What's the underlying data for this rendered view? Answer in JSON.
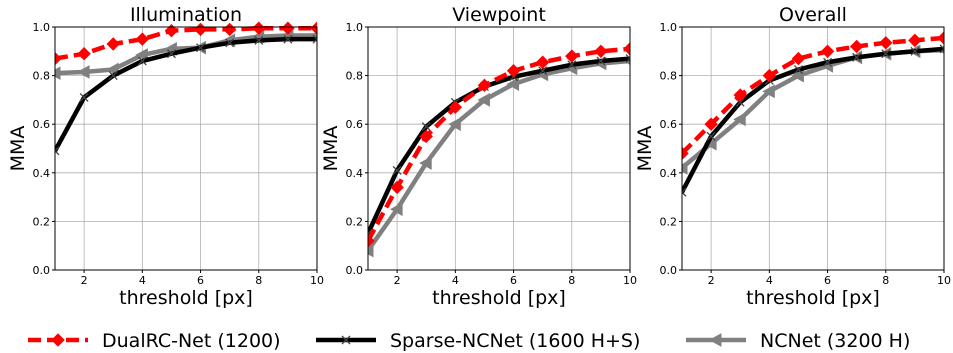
{
  "chart_data": [
    {
      "type": "line",
      "title": "Illumination",
      "xlabel": "threshold [px]",
      "ylabel": "MMA",
      "xlim": [
        1,
        10
      ],
      "ylim": [
        0.0,
        1.0
      ],
      "grid": true,
      "x": [
        1,
        2,
        3,
        4,
        5,
        6,
        7,
        8,
        9,
        10
      ],
      "series": [
        {
          "name": "DualRC-Net (1200)",
          "values": [
            0.87,
            0.89,
            0.93,
            0.95,
            0.985,
            0.99,
            0.99,
            0.995,
            0.995,
            0.995
          ]
        },
        {
          "name": "Sparse-NCNet (1600 H+S)",
          "values": [
            0.49,
            0.71,
            0.8,
            0.86,
            0.89,
            0.915,
            0.935,
            0.945,
            0.95,
            0.95
          ]
        },
        {
          "name": "NCNet (3200 H)",
          "values": [
            0.81,
            0.815,
            0.825,
            0.885,
            0.91,
            0.915,
            0.945,
            0.96,
            0.965,
            0.965
          ]
        }
      ]
    },
    {
      "type": "line",
      "title": "Viewpoint",
      "xlabel": "threshold [px]",
      "ylabel": "MMA",
      "xlim": [
        1,
        10
      ],
      "ylim": [
        0.0,
        1.0
      ],
      "grid": true,
      "x": [
        1,
        2,
        3,
        4,
        5,
        6,
        7,
        8,
        9,
        10
      ],
      "series": [
        {
          "name": "DualRC-Net (1200)",
          "values": [
            0.12,
            0.34,
            0.55,
            0.67,
            0.76,
            0.82,
            0.855,
            0.88,
            0.9,
            0.91
          ]
        },
        {
          "name": "Sparse-NCNet (1600 H+S)",
          "values": [
            0.15,
            0.41,
            0.59,
            0.69,
            0.755,
            0.795,
            0.82,
            0.845,
            0.86,
            0.87
          ]
        },
        {
          "name": "NCNet (3200 H)",
          "values": [
            0.08,
            0.25,
            0.44,
            0.6,
            0.7,
            0.765,
            0.805,
            0.83,
            0.85,
            0.86
          ]
        }
      ]
    },
    {
      "type": "line",
      "title": "Overall",
      "xlabel": "threshold [px]",
      "ylabel": "MMA",
      "xlim": [
        1,
        10
      ],
      "ylim": [
        0.0,
        1.0
      ],
      "grid": true,
      "x": [
        1,
        2,
        3,
        4,
        5,
        6,
        7,
        8,
        9,
        10
      ],
      "series": [
        {
          "name": "DualRC-Net (1200)",
          "values": [
            0.48,
            0.6,
            0.72,
            0.8,
            0.87,
            0.9,
            0.92,
            0.935,
            0.945,
            0.955
          ]
        },
        {
          "name": "Sparse-NCNet (1600 H+S)",
          "values": [
            0.32,
            0.55,
            0.69,
            0.78,
            0.825,
            0.855,
            0.875,
            0.89,
            0.9,
            0.91
          ]
        },
        {
          "name": "NCNet (3200 H)",
          "values": [
            0.42,
            0.52,
            0.62,
            0.735,
            0.8,
            0.84,
            0.875,
            0.89,
            0.9,
            0.905
          ]
        }
      ]
    }
  ],
  "xticks": [
    "2",
    "4",
    "6",
    "8",
    "10"
  ],
  "yticks": [
    "0.0",
    "0.2",
    "0.4",
    "0.6",
    "0.8",
    "1.0"
  ],
  "legend": {
    "placement": "bottom",
    "entries": [
      {
        "label": "DualRC-Net (1200)",
        "color": "#ff0000",
        "style": "dashed",
        "marker": "diamond"
      },
      {
        "label": "Sparse-NCNet (1600 H+S)",
        "color": "#000000",
        "style": "solid",
        "marker": "x"
      },
      {
        "label": "NCNet (3200 H)",
        "color": "#808080",
        "style": "solid",
        "marker": "triangle-left"
      }
    ]
  }
}
